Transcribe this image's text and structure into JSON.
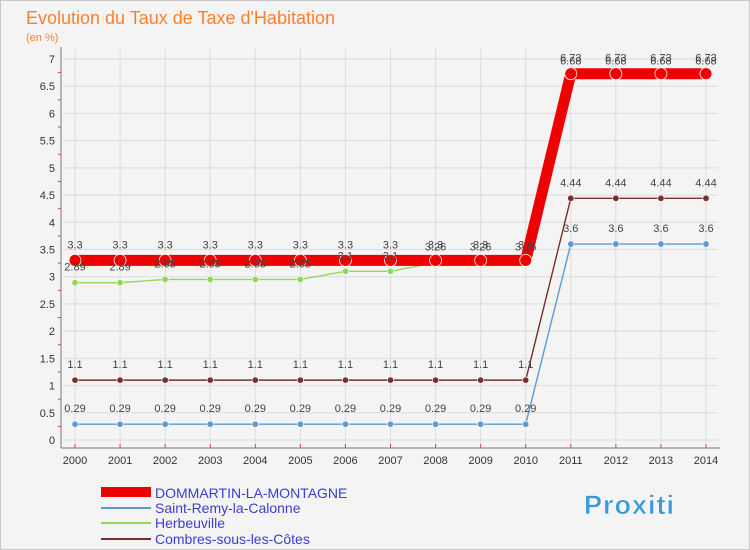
{
  "chart_data": {
    "type": "line",
    "title": "Evolution du Taux de Taxe d'Habitation",
    "ylabel": "(en %)",
    "xlabel": "",
    "x": [
      "2000",
      "2001",
      "2002",
      "2003",
      "2004",
      "2005",
      "2006",
      "2007",
      "2008",
      "2009",
      "2010",
      "2011",
      "2012",
      "2013",
      "2014"
    ],
    "ylim": [
      0,
      7
    ],
    "yticks": [
      "0",
      "0.5",
      "1",
      "1.5",
      "2",
      "2.5",
      "3",
      "3.5",
      "4",
      "4.5",
      "5",
      "5.5",
      "6",
      "6.5",
      "7"
    ],
    "series": [
      {
        "name": "Saint-Remy-la-Calonne",
        "color": "#5b9bd5",
        "values": [
          0.29,
          0.29,
          0.29,
          0.29,
          0.29,
          0.29,
          0.29,
          0.29,
          0.29,
          0.29,
          0.29,
          3.6,
          3.6,
          3.6,
          3.6
        ],
        "labels": [
          "0.29",
          "0.29",
          "0.29",
          "0.29",
          "0.29",
          "0.29",
          "0.29",
          "0.29",
          "0.29",
          "0.29",
          "0.29",
          "3.6",
          "3.6",
          "3.6",
          "3.6"
        ]
      },
      {
        "name": "Combres-sous-les-Côtes",
        "color": "#7a2e2e",
        "values": [
          1.1,
          1.1,
          1.1,
          1.1,
          1.1,
          1.1,
          1.1,
          1.1,
          1.1,
          1.1,
          1.1,
          4.44,
          4.44,
          4.44,
          4.44
        ],
        "labels": [
          "1.1",
          "1.1",
          "1.1",
          "1.1",
          "1.1",
          "1.1",
          "1.1",
          "1.1",
          "1.1",
          "1.1",
          "1.1",
          "4.44",
          "4.44",
          "4.44",
          "4.44"
        ]
      },
      {
        "name": "Herbeuville",
        "color": "#8fd85a",
        "values": [
          2.89,
          2.89,
          2.95,
          2.95,
          2.95,
          2.95,
          3.1,
          3.1,
          3.26,
          3.26,
          3.26,
          6.68,
          6.68,
          6.68,
          6.68
        ],
        "labels": [
          "2.89",
          "2.89",
          "2.95",
          "2.95",
          "2.95",
          "2.95",
          "3.1",
          "3.1",
          "3.26",
          "3.26",
          "3.26",
          "6.68",
          "6.68",
          "6.68",
          "6.68"
        ]
      },
      {
        "name": "DOMMARTIN-LA-MONTAGNE",
        "color": "#ee0000",
        "values": [
          3.3,
          3.3,
          3.3,
          3.3,
          3.3,
          3.3,
          3.3,
          3.3,
          3.3,
          3.3,
          3.3,
          6.73,
          6.73,
          6.73,
          6.73
        ],
        "labels": [
          "3.3",
          "3.3",
          "3.3",
          "3.3",
          "3.3",
          "3.3",
          "3.3",
          "3.3",
          "3.3",
          "3.3",
          "3.3",
          "6.73",
          "6.73",
          "6.73",
          "6.73"
        ]
      }
    ],
    "legend": [
      "DOMMARTIN-LA-MONTAGNE",
      "Saint-Remy-la-Calonne",
      "Herbeuville",
      "Combres-sous-les-Côtes"
    ],
    "legend_position": "bottom-left"
  },
  "logo": {
    "text": "Proxiti"
  }
}
